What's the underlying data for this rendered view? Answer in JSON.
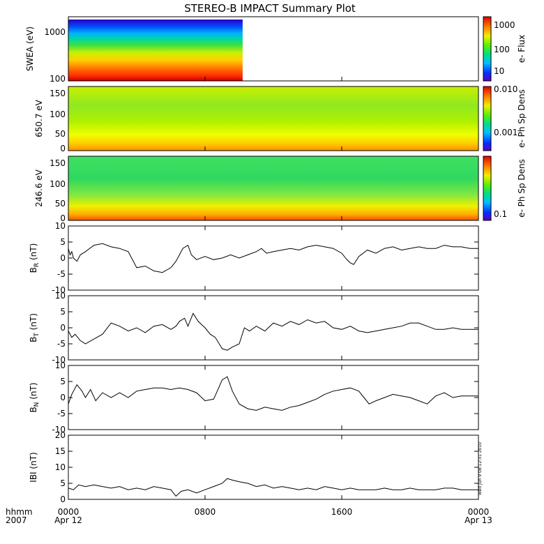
{
  "title": "STEREO-B IMPACT Summary Plot",
  "stamp": "Wed Jun  9 08:12:31 2010",
  "time_axis": {
    "label_top": "hhmm",
    "label_bottom": "2007",
    "range_hours": [
      0,
      24
    ],
    "ticks": [
      {
        "hour": 0,
        "label": "0000",
        "sub": "Apr 12"
      },
      {
        "hour": 8,
        "label": "0800",
        "sub": ""
      },
      {
        "hour": 16,
        "label": "1600",
        "sub": ""
      },
      {
        "hour": 24,
        "label": "0000",
        "sub": "Apr 13"
      }
    ]
  },
  "panels": {
    "swea": {
      "ylabel": "SWEA (eV)",
      "yticks": [
        "1000",
        "100"
      ],
      "data_end_hour": 10.2,
      "colorbar_label": "e- Flux",
      "colorbar_ticks": [
        "1000",
        "100",
        "10"
      ]
    },
    "pad650": {
      "ylabel": "650.7 eV",
      "yticks": [
        "150",
        "100",
        "50",
        "0"
      ],
      "colorbar_label": "e- Ph Sp Dens",
      "colorbar_ticks": [
        "0.010",
        "0.001"
      ]
    },
    "pad246": {
      "ylabel": "246.6 eV",
      "yticks": [
        "150",
        "100",
        "50",
        "0"
      ],
      "colorbar_label": "e- Ph Sp Dens",
      "colorbar_ticks": [
        "0.1"
      ]
    }
  },
  "chart_data": [
    {
      "type": "line",
      "name": "BR",
      "ylabel": "B_R (nT)",
      "ylim": [
        -10,
        10
      ],
      "yticks": [
        "10",
        "5",
        "0",
        "-5",
        "-10"
      ],
      "x": [
        0.0,
        0.1,
        0.2,
        0.3,
        0.5,
        0.7,
        1.0,
        1.5,
        2.0,
        2.5,
        3.0,
        3.5,
        3.7,
        3.9,
        4.0,
        4.5,
        5.0,
        5.5,
        6.0,
        6.3,
        6.5,
        6.7,
        7.0,
        7.2,
        7.5,
        8.0,
        8.5,
        9.0,
        9.5,
        10.0,
        10.5,
        11.0,
        11.3,
        11.6,
        12.0,
        12.5,
        13.0,
        13.5,
        14.0,
        14.5,
        15.0,
        15.5,
        16.0,
        16.3,
        16.5,
        16.7,
        17.0,
        17.5,
        18.0,
        18.5,
        19.0,
        19.5,
        20.0,
        20.5,
        21.0,
        21.5,
        22.0,
        22.5,
        23.0,
        23.5,
        24.0
      ],
      "values": [
        3.0,
        1.0,
        2.0,
        0.0,
        -1.0,
        1.0,
        2.0,
        4.0,
        4.5,
        3.5,
        3.0,
        2.0,
        0.0,
        -2.0,
        -3.0,
        -2.5,
        -4.0,
        -4.5,
        -3.0,
        -1.0,
        1.0,
        3.0,
        4.0,
        1.0,
        -0.5,
        0.5,
        -0.5,
        0.0,
        1.0,
        0.0,
        1.0,
        2.0,
        3.0,
        1.5,
        2.0,
        2.5,
        3.0,
        2.5,
        3.5,
        4.0,
        3.5,
        3.0,
        1.5,
        -0.5,
        -1.5,
        -2.0,
        0.5,
        2.5,
        1.5,
        3.0,
        3.5,
        2.5,
        3.0,
        3.5,
        3.0,
        3.0,
        4.0,
        3.5,
        3.5,
        3.0,
        3.0
      ]
    },
    {
      "type": "line",
      "name": "BT",
      "ylabel": "B_T (nT)",
      "ylim": [
        -10,
        10
      ],
      "yticks": [
        "10",
        "5",
        "0",
        "-5",
        "-10"
      ],
      "x": [
        0.0,
        0.2,
        0.4,
        0.7,
        1.0,
        1.5,
        2.0,
        2.5,
        3.0,
        3.5,
        4.0,
        4.5,
        5.0,
        5.5,
        6.0,
        6.3,
        6.5,
        6.8,
        7.0,
        7.3,
        7.6,
        8.0,
        8.3,
        8.6,
        9.0,
        9.3,
        9.6,
        10.0,
        10.3,
        10.6,
        11.0,
        11.5,
        12.0,
        12.5,
        13.0,
        13.5,
        14.0,
        14.5,
        15.0,
        15.5,
        16.0,
        16.5,
        17.0,
        17.5,
        18.0,
        18.5,
        19.0,
        19.5,
        20.0,
        20.5,
        21.0,
        21.5,
        22.0,
        22.5,
        23.0,
        23.5,
        24.0
      ],
      "values": [
        -1.0,
        -3.0,
        -2.0,
        -4.0,
        -5.0,
        -3.5,
        -2.0,
        1.5,
        0.5,
        -1.0,
        0.0,
        -1.5,
        0.5,
        1.0,
        -0.5,
        0.5,
        2.0,
        3.0,
        0.5,
        4.5,
        2.0,
        0.0,
        -2.0,
        -3.0,
        -6.5,
        -7.0,
        -6.0,
        -5.0,
        0.0,
        -1.0,
        0.5,
        -1.0,
        1.5,
        0.5,
        2.0,
        1.0,
        2.5,
        1.5,
        2.0,
        0.0,
        -0.5,
        0.5,
        -1.0,
        -1.5,
        -1.0,
        -0.5,
        0.0,
        0.5,
        1.5,
        1.5,
        0.5,
        -0.5,
        -0.5,
        0.0,
        -0.5,
        -0.5,
        -0.5
      ]
    },
    {
      "type": "line",
      "name": "BN",
      "ylabel": "B_N (nT)",
      "ylim": [
        -10,
        10
      ],
      "yticks": [
        "10",
        "5",
        "0",
        "-5",
        "-10"
      ],
      "x": [
        0.0,
        0.2,
        0.5,
        0.8,
        1.0,
        1.3,
        1.6,
        2.0,
        2.5,
        3.0,
        3.5,
        4.0,
        4.5,
        5.0,
        5.5,
        6.0,
        6.5,
        7.0,
        7.5,
        8.0,
        8.5,
        8.8,
        9.0,
        9.3,
        9.6,
        10.0,
        10.5,
        11.0,
        11.5,
        12.0,
        12.5,
        13.0,
        13.5,
        14.0,
        14.5,
        15.0,
        15.5,
        16.0,
        16.5,
        17.0,
        17.3,
        17.6,
        18.0,
        18.5,
        19.0,
        19.5,
        20.0,
        20.5,
        21.0,
        21.5,
        22.0,
        22.5,
        23.0,
        23.5,
        24.0
      ],
      "values": [
        -2.0,
        1.0,
        4.0,
        2.0,
        0.0,
        2.5,
        -1.0,
        1.5,
        0.0,
        1.5,
        0.0,
        2.0,
        2.5,
        3.0,
        3.0,
        2.5,
        3.0,
        2.5,
        1.5,
        -1.0,
        -0.5,
        3.0,
        5.5,
        6.5,
        2.0,
        -2.0,
        -3.5,
        -4.0,
        -3.0,
        -3.5,
        -4.0,
        -3.0,
        -2.5,
        -1.5,
        -0.5,
        1.0,
        2.0,
        2.5,
        3.0,
        2.0,
        0.0,
        -2.0,
        -1.0,
        0.0,
        1.0,
        0.5,
        0.0,
        -1.0,
        -2.0,
        0.5,
        1.5,
        0.0,
        0.5,
        0.5,
        0.5
      ]
    },
    {
      "type": "line",
      "name": "B magnitude",
      "ylabel": "IBI (nT)",
      "ylim": [
        0,
        20
      ],
      "yticks": [
        "20",
        "15",
        "10",
        "5",
        "0"
      ],
      "x": [
        0.0,
        0.3,
        0.6,
        1.0,
        1.5,
        2.0,
        2.5,
        3.0,
        3.5,
        4.0,
        4.5,
        5.0,
        5.5,
        6.0,
        6.3,
        6.6,
        7.0,
        7.5,
        8.0,
        8.5,
        9.0,
        9.3,
        9.6,
        10.0,
        10.5,
        11.0,
        11.5,
        12.0,
        12.5,
        13.0,
        13.5,
        14.0,
        14.5,
        15.0,
        15.5,
        16.0,
        16.5,
        17.0,
        17.5,
        18.0,
        18.5,
        19.0,
        19.5,
        20.0,
        20.5,
        21.0,
        21.5,
        22.0,
        22.5,
        23.0,
        23.5,
        24.0
      ],
      "values": [
        3.5,
        3.0,
        4.5,
        4.0,
        4.5,
        4.0,
        3.5,
        4.0,
        3.0,
        3.5,
        3.0,
        4.0,
        3.5,
        3.0,
        1.0,
        2.5,
        3.0,
        2.0,
        3.0,
        4.0,
        5.0,
        6.5,
        6.0,
        5.5,
        5.0,
        4.0,
        4.5,
        3.5,
        4.0,
        3.5,
        3.0,
        3.5,
        3.0,
        4.0,
        3.5,
        3.0,
        3.5,
        3.0,
        3.0,
        3.0,
        3.5,
        3.0,
        3.0,
        3.5,
        3.0,
        3.0,
        3.0,
        3.5,
        3.5,
        3.0,
        3.0,
        3.0
      ]
    }
  ]
}
